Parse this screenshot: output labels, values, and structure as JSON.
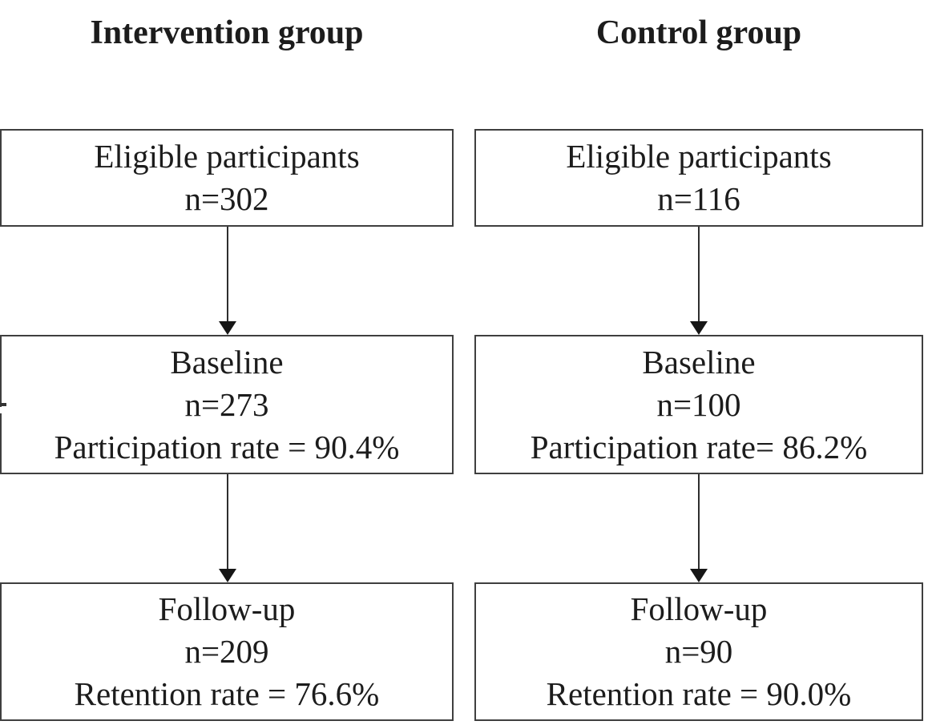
{
  "figure": {
    "type": "flow-diagram",
    "columns": [
      {
        "id": "intervention",
        "header": "Intervention group",
        "boxes": [
          {
            "lines": [
              "Eligible participants",
              "n=302"
            ]
          },
          {
            "lines": [
              "Baseline",
              "n=273",
              "Participation rate = 90.4%"
            ]
          },
          {
            "lines": [
              "Follow-up",
              "n=209",
              "Retention rate = 76.6%"
            ]
          }
        ]
      },
      {
        "id": "control",
        "header": "Control group",
        "boxes": [
          {
            "lines": [
              "Eligible participants",
              "n=116"
            ]
          },
          {
            "lines": [
              "Baseline",
              "n=100",
              "Participation rate= 86.2%"
            ]
          },
          {
            "lines": [
              "Follow-up",
              "n=90",
              "Retention rate = 90.0%"
            ]
          }
        ]
      }
    ],
    "colors": {
      "background": "#ffffff",
      "text": "#1c1c1c",
      "box_border": "#3f3f3f",
      "arrow": "#161616"
    }
  }
}
